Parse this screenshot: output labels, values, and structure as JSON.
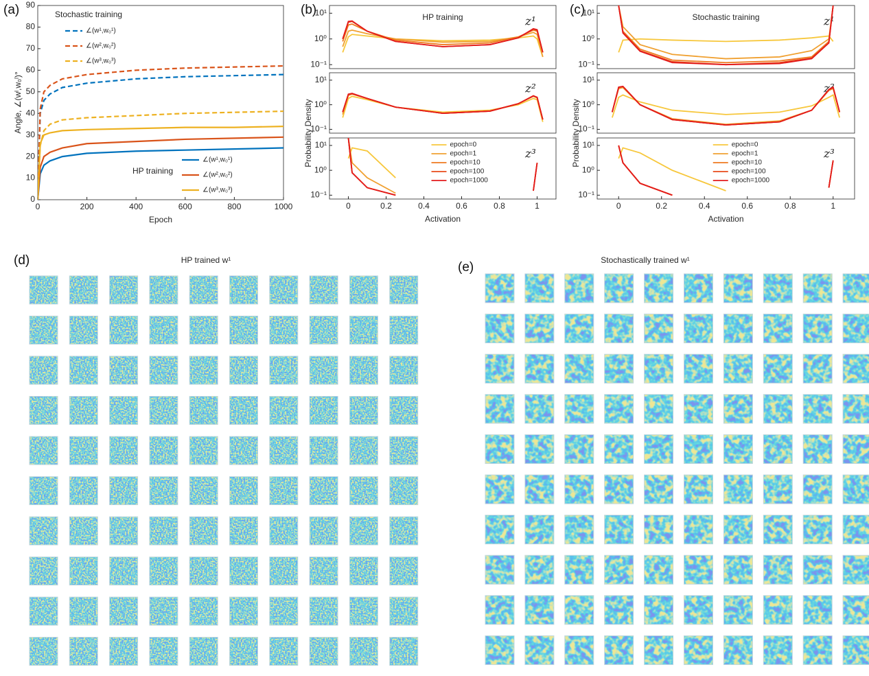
{
  "chart_data": [
    {
      "type": "line",
      "panel_label": "(a)",
      "xlabel": "Epoch",
      "ylabel": "Angle, ∠(wˡ,w₀ˡ)°",
      "x": [
        0,
        10,
        25,
        50,
        100,
        200,
        400,
        600,
        800,
        1000
      ],
      "xlim": [
        0,
        1000
      ],
      "xticks": [
        0,
        200,
        400,
        600,
        800,
        1000
      ],
      "ylim": [
        0,
        90
      ],
      "yticks": [
        0,
        10,
        20,
        30,
        40,
        50,
        60,
        70,
        80,
        90
      ],
      "legend_titles": [
        "Stochastic training",
        "HP training"
      ],
      "series": [
        {
          "name": "∠(w¹,w₀¹)",
          "color": "#0072bd",
          "dashed": true,
          "values": [
            0,
            40,
            46,
            49,
            52,
            54,
            56,
            57,
            57.5,
            58
          ]
        },
        {
          "name": "∠(w²,w₀²)",
          "color": "#d95319",
          "dashed": true,
          "values": [
            0,
            42,
            50,
            53,
            56,
            58,
            60,
            61,
            61.5,
            62
          ]
        },
        {
          "name": "∠(w³,w₀³)",
          "color": "#edb120",
          "dashed": true,
          "values": [
            0,
            25,
            32,
            35,
            37,
            38,
            39,
            40,
            40.5,
            41
          ]
        },
        {
          "name": "∠(w¹,w₀¹)",
          "color": "#0072bd",
          "dashed": false,
          "values": [
            0,
            12,
            16,
            18,
            20,
            21.5,
            22.5,
            23,
            23.5,
            24
          ]
        },
        {
          "name": "∠(w²,w₀²)",
          "color": "#d95319",
          "dashed": false,
          "values": [
            0,
            15,
            20,
            22,
            24,
            26,
            27,
            28,
            28.5,
            29
          ]
        },
        {
          "name": "∠(w³,w₀³)",
          "color": "#edb120",
          "dashed": false,
          "values": [
            0,
            26,
            30,
            31,
            32,
            32.5,
            33,
            33.5,
            33.5,
            34
          ]
        }
      ]
    },
    {
      "type": "line",
      "panel_label": "(b)",
      "title": "HP training",
      "annotation": "z¹",
      "log_y": true,
      "x": [
        -0.03,
        0,
        0.02,
        0.1,
        0.25,
        0.5,
        0.75,
        0.9,
        0.98,
        1,
        1.03
      ],
      "xlim": [
        -0.1,
        1.1
      ],
      "ylim": [
        0.07,
        20
      ],
      "yticks": [
        {
          "value": 0.1,
          "label": "10⁻¹"
        },
        {
          "value": 1,
          "label": "10⁰"
        },
        {
          "value": 10,
          "label": "10¹"
        }
      ],
      "series": [
        {
          "color": "#f7c73b",
          "values": [
            0.3,
            1.2,
            1.5,
            1.3,
            1.0,
            0.85,
            0.9,
            1.1,
            1.3,
            1.0,
            0.2
          ]
        },
        {
          "color": "#f0a030",
          "values": [
            0.5,
            2.0,
            2.2,
            1.6,
            1.0,
            0.75,
            0.8,
            1.2,
            1.8,
            1.5,
            0.2
          ]
        },
        {
          "color": "#ee7a1f",
          "values": [
            0.8,
            3.5,
            3.8,
            2.0,
            0.9,
            0.6,
            0.7,
            1.2,
            2.2,
            2.0,
            0.3
          ]
        },
        {
          "color": "#e84a1a",
          "values": [
            1,
            4.5,
            4.8,
            2.0,
            0.8,
            0.5,
            0.6,
            1.1,
            2.4,
            2.2,
            0.3
          ]
        },
        {
          "color": "#e31a1c",
          "values": [
            1,
            4.8,
            5,
            2,
            0.8,
            0.5,
            0.6,
            1.1,
            2.5,
            2.3,
            0.3
          ]
        }
      ]
    },
    {
      "type": "line",
      "annotation": "z²",
      "log_y": true,
      "ylabel": "Probability Density",
      "x": [
        -0.03,
        0,
        0.02,
        0.1,
        0.25,
        0.5,
        0.75,
        0.9,
        0.98,
        1,
        1.03
      ],
      "xlim": [
        -0.1,
        1.1
      ],
      "ylim": [
        0.07,
        20
      ],
      "yticks": [
        {
          "value": 0.1,
          "label": "10⁻¹"
        },
        {
          "value": 1,
          "label": "10⁰"
        },
        {
          "value": 10,
          "label": "10¹"
        }
      ],
      "series": [
        {
          "color": "#f7c73b",
          "values": [
            0.3,
            1.8,
            2.2,
            1.6,
            0.8,
            0.5,
            0.6,
            1.0,
            1.8,
            1.6,
            0.2
          ]
        },
        {
          "color": "#f0a030",
          "values": [
            0.4,
            2.4,
            2.7,
            1.8,
            0.8,
            0.45,
            0.55,
            1.1,
            2.2,
            1.9,
            0.25
          ]
        },
        {
          "color": "#ee7a1f",
          "values": [
            0.5,
            2.6,
            2.8,
            1.8,
            0.8,
            0.45,
            0.55,
            1.1,
            2.3,
            2.0,
            0.25
          ]
        },
        {
          "color": "#e84a1a",
          "values": [
            0.5,
            2.6,
            2.8,
            1.8,
            0.8,
            0.45,
            0.55,
            1.1,
            2.3,
            2.0,
            0.25
          ]
        },
        {
          "color": "#e31a1c",
          "values": [
            0.5,
            2.7,
            2.9,
            1.8,
            0.8,
            0.45,
            0.55,
            1.1,
            2.3,
            2.0,
            0.25
          ]
        }
      ]
    },
    {
      "type": "line",
      "annotation": "z³",
      "log_y": true,
      "xlabel": "Activation",
      "x": [
        -0.03,
        0,
        0.02,
        0.1,
        0.25,
        0.5,
        0.75,
        0.9,
        0.98,
        1,
        1.03
      ],
      "xlim": [
        -0.1,
        1.1
      ],
      "xticks": [
        0,
        0.2,
        0.4,
        0.6,
        0.8,
        1
      ],
      "ylim": [
        0.07,
        20
      ],
      "yticks": [
        {
          "value": 0.1,
          "label": "10⁻¹"
        },
        {
          "value": 1,
          "label": "10⁰"
        },
        {
          "value": 10,
          "label": "10¹"
        }
      ],
      "series": [
        {
          "name": "epoch=0",
          "color": "#f7c73b",
          "values": [
            null,
            3,
            8,
            6,
            0.5,
            null,
            null,
            null,
            null,
            null,
            null
          ]
        },
        {
          "name": "epoch=1",
          "color": "#f0a030",
          "values": [
            null,
            20,
            2,
            0.5,
            0.12,
            null,
            null,
            null,
            null,
            0.8,
            null
          ]
        },
        {
          "name": "epoch=10",
          "color": "#ee7a1f",
          "values": [
            null,
            20,
            0.8,
            0.2,
            0.1,
            null,
            null,
            null,
            0.15,
            2,
            null
          ]
        },
        {
          "name": "epoch=100",
          "color": "#e84a1a",
          "values": [
            null,
            20,
            0.8,
            0.2,
            0.1,
            null,
            null,
            null,
            0.15,
            2,
            null
          ]
        },
        {
          "name": "epoch=1000",
          "color": "#e31a1c",
          "values": [
            null,
            20,
            0.8,
            0.2,
            0.1,
            null,
            null,
            null,
            0.15,
            2,
            null
          ]
        }
      ]
    },
    {
      "type": "line",
      "panel_label": "(c)",
      "title": "Stochastic training",
      "annotation": "z¹",
      "log_y": true,
      "x": [
        -0.03,
        0,
        0.02,
        0.1,
        0.25,
        0.5,
        0.75,
        0.9,
        0.98,
        1,
        1.03
      ],
      "xlim": [
        -0.1,
        1.1
      ],
      "ylim": [
        0.07,
        20
      ],
      "yticks": [
        {
          "value": 0.1,
          "label": "10⁻¹"
        },
        {
          "value": 1,
          "label": "10⁰"
        },
        {
          "value": 10,
          "label": "10¹"
        }
      ],
      "series": [
        {
          "color": "#f7c73b",
          "values": [
            null,
            0.3,
            0.9,
            1,
            0.9,
            0.8,
            0.9,
            1.1,
            1.3,
            0.8,
            null
          ]
        },
        {
          "color": "#f0a030",
          "values": [
            null,
            20,
            3,
            0.6,
            0.25,
            0.17,
            0.2,
            0.35,
            1,
            20,
            null
          ]
        },
        {
          "color": "#ee7a1f",
          "values": [
            null,
            20,
            2,
            0.4,
            0.15,
            0.12,
            0.14,
            0.2,
            0.8,
            20,
            null
          ]
        },
        {
          "color": "#e84a1a",
          "values": [
            null,
            20,
            1.8,
            0.35,
            0.13,
            0.1,
            0.12,
            0.18,
            0.7,
            20,
            null
          ]
        },
        {
          "color": "#e31a1c",
          "values": [
            null,
            20,
            1.7,
            0.33,
            0.12,
            0.1,
            0.11,
            0.17,
            0.7,
            20,
            null
          ]
        }
      ]
    },
    {
      "type": "line",
      "annotation": "z²",
      "log_y": true,
      "ylabel": "Probability Density",
      "x": [
        -0.03,
        0,
        0.02,
        0.1,
        0.25,
        0.5,
        0.75,
        0.9,
        0.98,
        1,
        1.03
      ],
      "xlim": [
        -0.1,
        1.1
      ],
      "ylim": [
        0.07,
        20
      ],
      "yticks": [
        {
          "value": 0.1,
          "label": "10⁻¹"
        },
        {
          "value": 1,
          "label": "10⁰"
        },
        {
          "value": 10,
          "label": "10¹"
        }
      ],
      "series": [
        {
          "color": "#f7c73b",
          "values": [
            0.3,
            2,
            2.5,
            1.3,
            0.6,
            0.4,
            0.5,
            0.9,
            2,
            2.5,
            0.3
          ]
        },
        {
          "color": "#f0a030",
          "values": [
            0.5,
            4.5,
            5,
            1,
            0.27,
            0.16,
            0.22,
            0.6,
            3.8,
            4.5,
            0.5
          ]
        },
        {
          "color": "#ee7a1f",
          "values": [
            0.5,
            5,
            5.5,
            1,
            0.25,
            0.15,
            0.2,
            0.6,
            4,
            5,
            0.5
          ]
        },
        {
          "color": "#e84a1a",
          "values": [
            0.5,
            5,
            5.5,
            1,
            0.25,
            0.15,
            0.2,
            0.6,
            4,
            5,
            0.5
          ]
        },
        {
          "color": "#e31a1c",
          "values": [
            0.5,
            5.2,
            5.6,
            1,
            0.25,
            0.15,
            0.2,
            0.6,
            4.2,
            5.2,
            0.5
          ]
        }
      ]
    },
    {
      "type": "line",
      "annotation": "z³",
      "log_y": true,
      "xlabel": "Activation",
      "x": [
        -0.03,
        0,
        0.02,
        0.1,
        0.25,
        0.5,
        0.75,
        0.9,
        0.98,
        1,
        1.03
      ],
      "xlim": [
        -0.1,
        1.1
      ],
      "xticks": [
        0,
        0.2,
        0.4,
        0.6,
        0.8,
        1
      ],
      "ylim": [
        0.07,
        20
      ],
      "yticks": [
        {
          "value": 0.1,
          "label": "10⁻¹"
        },
        {
          "value": 1,
          "label": "10⁰"
        },
        {
          "value": 10,
          "label": "10¹"
        }
      ],
      "series": [
        {
          "name": "epoch=0",
          "color": "#f7c73b",
          "values": [
            null,
            3,
            8,
            5,
            1,
            0.15,
            null,
            null,
            null,
            null,
            null
          ]
        },
        {
          "name": "epoch=1",
          "color": "#f0a030",
          "values": [
            null,
            10,
            2,
            0.3,
            0.1,
            null,
            null,
            null,
            0.2,
            2.5,
            null
          ]
        },
        {
          "name": "epoch=10",
          "color": "#ee7a1f",
          "values": [
            null,
            10,
            2,
            0.3,
            0.1,
            null,
            null,
            null,
            0.2,
            2.5,
            null
          ]
        },
        {
          "name": "epoch=100",
          "color": "#e84a1a",
          "values": [
            null,
            10,
            2,
            0.3,
            0.1,
            null,
            null,
            null,
            0.2,
            2.5,
            null
          ]
        },
        {
          "name": "epoch=1000",
          "color": "#e31a1c",
          "values": [
            null,
            10,
            2,
            0.3,
            0.1,
            null,
            null,
            null,
            0.2,
            2.5,
            null
          ]
        }
      ]
    }
  ],
  "image_grids": [
    {
      "panel_label": "(d)",
      "title": "HP trained w¹"
    },
    {
      "panel_label": "(e)",
      "title": "Stochastically trained w¹"
    }
  ]
}
